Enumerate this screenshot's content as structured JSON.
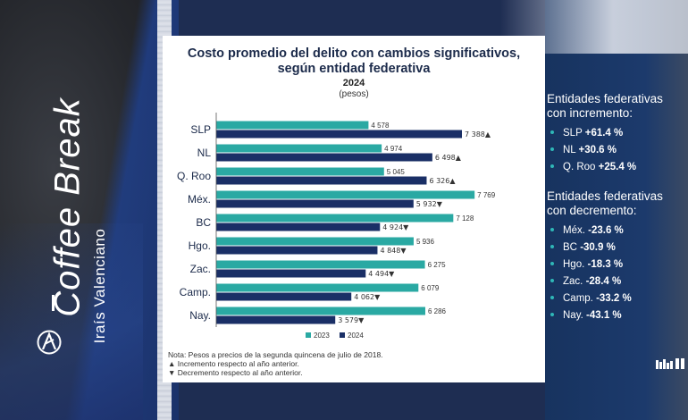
{
  "brand": {
    "name": "Coffee Break",
    "author": "Iraís Valenciano"
  },
  "chart_data": {
    "type": "bar",
    "orientation": "horizontal",
    "title_line1": "Costo promedio del delito con cambios significativos,",
    "title_line2": "según entidad federativa",
    "subtitle": "2024",
    "unit": "(pesos)",
    "categories": [
      "SLP",
      "NL",
      "Q. Roo",
      "Méx.",
      "BC",
      "Hgo.",
      "Zac.",
      "Camp.",
      "Nay."
    ],
    "series": [
      {
        "name": "2023",
        "color": "#2aa9a3",
        "values": [
          4578,
          4974,
          5045,
          7769,
          7128,
          5936,
          6275,
          6079,
          6286
        ],
        "labels": [
          "4 578",
          "4 974",
          "5 045",
          "7 769",
          "7 128",
          "5 936",
          "6 275",
          "6 079",
          "6 286"
        ]
      },
      {
        "name": "2024",
        "color": "#1a2f66",
        "values": [
          7388,
          6498,
          6326,
          5932,
          4924,
          4848,
          4494,
          4062,
          3579
        ],
        "labels": [
          "7 388",
          "6 498",
          "6 326",
          "5 932",
          "4 924",
          "4 848",
          "4 494",
          "4 062",
          "3 579"
        ],
        "markers": [
          "up",
          "up",
          "up",
          "down",
          "down",
          "down",
          "down",
          "down",
          "down"
        ]
      }
    ],
    "xlim": [
      0,
      9000
    ],
    "legend": "bottom-center",
    "notes": [
      "Nota: Pesos a precios de la segunda quincena de julio de 2018.",
      "▲ Incremento respecto al año anterior.",
      "▼ Decremento respecto al año anterior."
    ]
  },
  "increases": {
    "heading_line1": "Entidades federativas",
    "heading_line2": "con incremento:",
    "items": [
      {
        "state": "SLP",
        "pct": "+61.4 %"
      },
      {
        "state": "NL",
        "pct": "+30.6 %"
      },
      {
        "state": "Q. Roo",
        "pct": "+25.4 %"
      }
    ]
  },
  "decreases": {
    "heading_line1": "Entidades federativas",
    "heading_line2": "con decremento:",
    "items": [
      {
        "state": "Méx.",
        "pct": "-23.6 %"
      },
      {
        "state": "BC",
        "pct": "-30.9 %"
      },
      {
        "state": "Hgo.",
        "pct": "-18.3 %"
      },
      {
        "state": "Zac.",
        "pct": "-28.4 %"
      },
      {
        "state": "Camp.",
        "pct": "-33.2 %"
      },
      {
        "state": "Nay.",
        "pct": "-43.1 %"
      }
    ]
  }
}
